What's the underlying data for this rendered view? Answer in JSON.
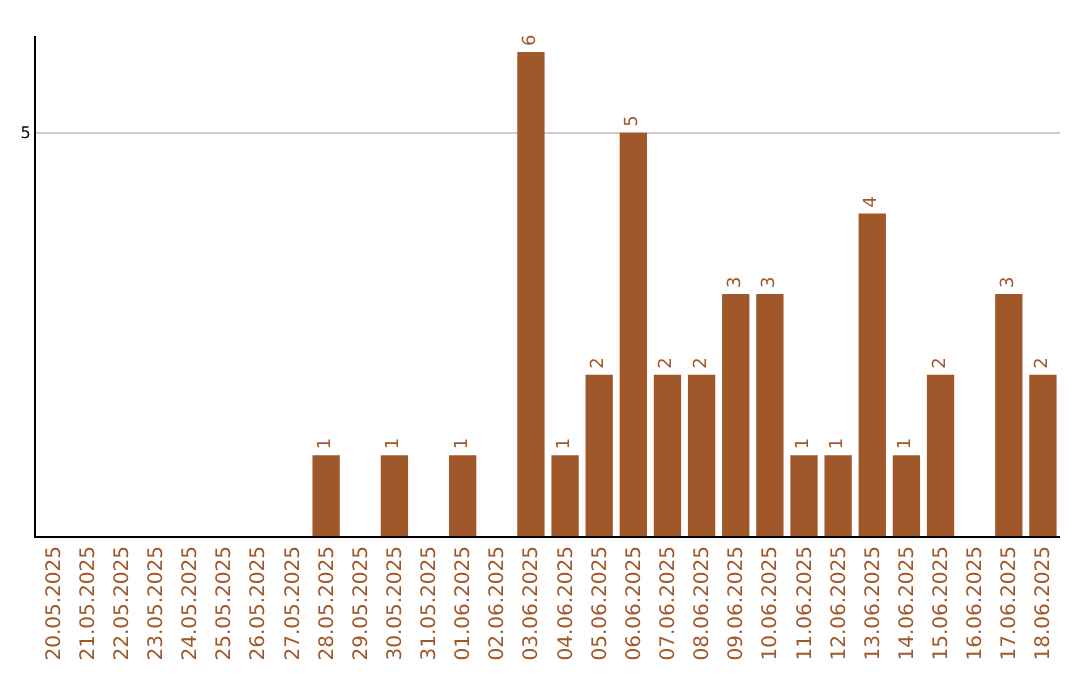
{
  "chart_data": {
    "type": "bar",
    "categories": [
      "20.05.2025",
      "21.05.2025",
      "22.05.2025",
      "23.05.2025",
      "24.05.2025",
      "25.05.2025",
      "26.05.2025",
      "27.05.2025",
      "28.05.2025",
      "29.05.2025",
      "30.05.2025",
      "31.05.2025",
      "01.06.2025",
      "02.06.2025",
      "03.06.2025",
      "04.06.2025",
      "05.06.2025",
      "06.06.2025",
      "07.06.2025",
      "08.06.2025",
      "09.06.2025",
      "10.06.2025",
      "11.06.2025",
      "12.06.2025",
      "13.06.2025",
      "14.06.2025",
      "15.06.2025",
      "16.06.2025",
      "17.06.2025",
      "18.06.2025"
    ],
    "values": [
      0,
      0,
      0,
      0,
      0,
      0,
      0,
      0,
      1,
      0,
      1,
      0,
      1,
      0,
      6,
      1,
      2,
      5,
      2,
      2,
      3,
      3,
      1,
      1,
      4,
      1,
      2,
      0,
      3,
      2
    ],
    "value_labels": [
      null,
      null,
      null,
      null,
      null,
      null,
      null,
      null,
      "1",
      null,
      "1",
      null,
      "1",
      null,
      "6",
      "1",
      "2",
      "5",
      "2",
      "2",
      "3",
      "3",
      "1",
      "1",
      "4",
      "1",
      "2",
      null,
      "3",
      "2"
    ],
    "color": "#a0582a",
    "ylim": [
      0,
      6.2
    ],
    "yticks": [
      5
    ],
    "grid": "y"
  }
}
